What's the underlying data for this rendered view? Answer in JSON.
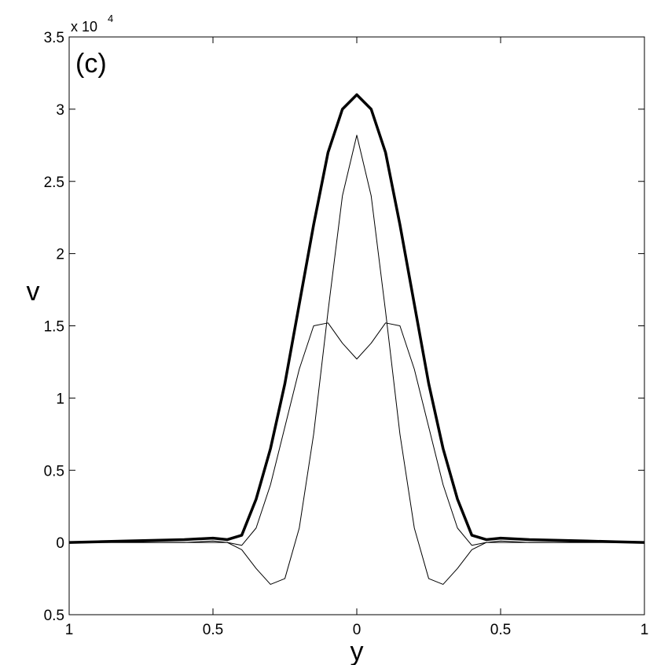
{
  "chart_data": {
    "type": "line",
    "annotation": "(c)",
    "xlabel": "y",
    "ylabel": "v",
    "exponent_base": "x 10",
    "exponent": "4",
    "x": [
      -1,
      -0.9,
      -0.8,
      -0.7,
      -0.6,
      -0.5,
      -0.45,
      -0.4,
      -0.35,
      -0.3,
      -0.25,
      -0.2,
      -0.15,
      -0.1,
      -0.05,
      0,
      0.05,
      0.1,
      0.15,
      0.2,
      0.25,
      0.3,
      0.35,
      0.4,
      0.45,
      0.5,
      0.6,
      0.7,
      0.8,
      0.9,
      1
    ],
    "series": [
      {
        "color": "#000000",
        "linewidth": 3.5,
        "values": [
          0,
          0.005,
          0.01,
          0.015,
          0.02,
          0.03,
          0.02,
          0.05,
          0.3,
          0.65,
          1.1,
          1.65,
          2.2,
          2.7,
          3.0,
          3.1,
          3.0,
          2.7,
          2.2,
          1.65,
          1.1,
          0.65,
          0.3,
          0.05,
          0.02,
          0.03,
          0.02,
          0.015,
          0.01,
          0.005,
          0
        ]
      },
      {
        "color": "#000000",
        "linewidth": 1,
        "values": [
          0,
          0,
          0,
          0,
          0,
          0,
          0,
          -0.05,
          -0.18,
          -0.29,
          -0.25,
          0.1,
          0.75,
          1.6,
          2.4,
          2.82,
          2.4,
          1.6,
          0.75,
          0.1,
          -0.25,
          -0.29,
          -0.18,
          -0.05,
          0,
          0,
          0,
          0,
          0,
          0,
          0
        ]
      },
      {
        "color": "#000000",
        "linewidth": 1,
        "values": [
          0,
          0,
          0,
          0,
          0,
          0.01,
          0,
          -0.02,
          0.1,
          0.4,
          0.8,
          1.2,
          1.5,
          1.52,
          1.38,
          1.27,
          1.38,
          1.52,
          1.5,
          1.2,
          0.8,
          0.4,
          0.1,
          -0.02,
          0,
          0.01,
          0,
          0,
          0,
          0,
          0
        ]
      }
    ],
    "xlim": [
      -1,
      1
    ],
    "xticks": [
      {
        "value": -1,
        "label": "1"
      },
      {
        "value": -0.5,
        "label": "0.5"
      },
      0,
      0.5,
      1
    ],
    "ylim": [
      -0.5,
      3.5
    ],
    "yticks": [
      {
        "value": -0.5,
        "label": "0.5"
      },
      0,
      0.5,
      1,
      1.5,
      2,
      2.5,
      3,
      3.5
    ]
  }
}
